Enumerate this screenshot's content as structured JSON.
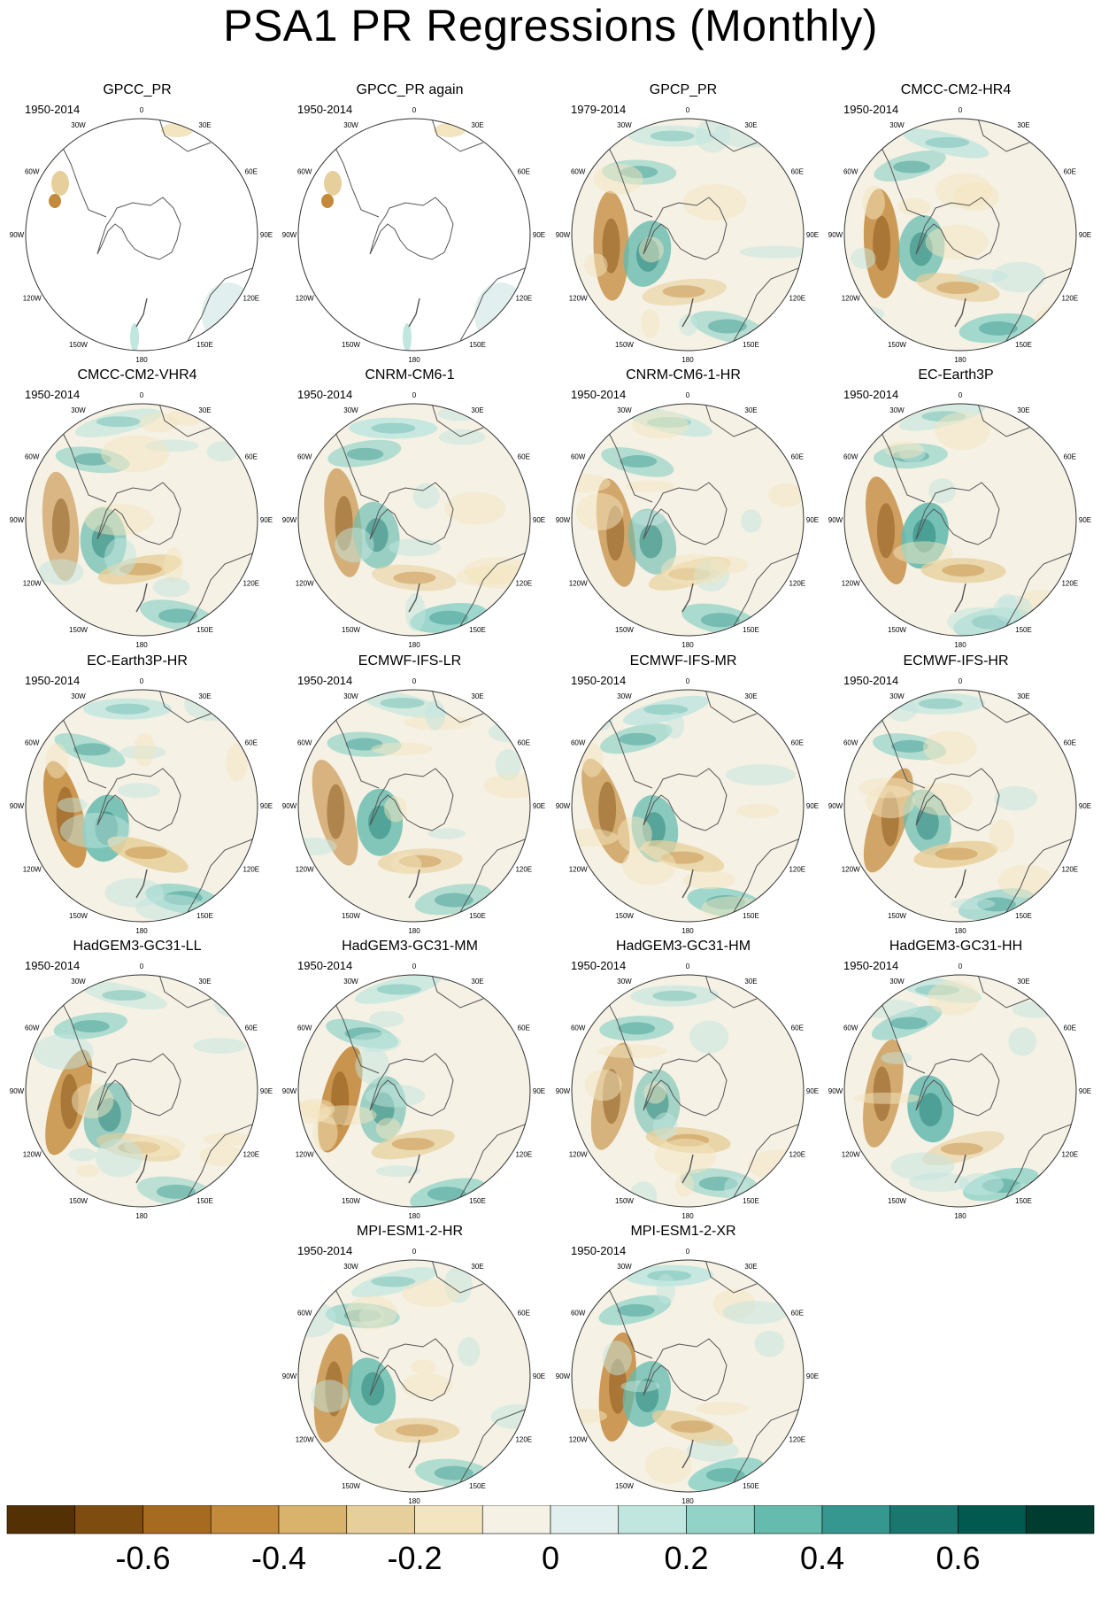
{
  "title": "PSA1 PR Regressions (Monthly)",
  "longitude_labels": [
    "0",
    "30E",
    "60E",
    "90E",
    "120E",
    "150E",
    "180",
    "150W",
    "120W",
    "90W",
    "60W",
    "30W"
  ],
  "panels": [
    {
      "name": "GPCC_PR",
      "years": "1950-2014",
      "coverage": "land-only"
    },
    {
      "name": "GPCC_PR again",
      "years": "1950-2014",
      "coverage": "land-only"
    },
    {
      "name": "GPCP_PR",
      "years": "1979-2014",
      "coverage": "full"
    },
    {
      "name": "CMCC-CM2-HR4",
      "years": "1950-2014",
      "coverage": "full"
    },
    {
      "name": "CMCC-CM2-VHR4",
      "years": "1950-2014",
      "coverage": "full"
    },
    {
      "name": "CNRM-CM6-1",
      "years": "1950-2014",
      "coverage": "full"
    },
    {
      "name": "CNRM-CM6-1-HR",
      "years": "1950-2014",
      "coverage": "full"
    },
    {
      "name": "EC-Earth3P",
      "years": "1950-2014",
      "coverage": "full"
    },
    {
      "name": "EC-Earth3P-HR",
      "years": "1950-2014",
      "coverage": "full"
    },
    {
      "name": "ECMWF-IFS-LR",
      "years": "1950-2014",
      "coverage": "full"
    },
    {
      "name": "ECMWF-IFS-MR",
      "years": "1950-2014",
      "coverage": "full"
    },
    {
      "name": "ECMWF-IFS-HR",
      "years": "1950-2014",
      "coverage": "full"
    },
    {
      "name": "HadGEM3-GC31-LL",
      "years": "1950-2014",
      "coverage": "full"
    },
    {
      "name": "HadGEM3-GC31-MM",
      "years": "1950-2014",
      "coverage": "full"
    },
    {
      "name": "HadGEM3-GC31-HM",
      "years": "1950-2014",
      "coverage": "full"
    },
    {
      "name": "HadGEM3-GC31-HH",
      "years": "1950-2014",
      "coverage": "full"
    },
    {
      "name": "MPI-ESM1-2-HR",
      "years": "1950-2014",
      "coverage": "full"
    },
    {
      "name": "MPI-ESM1-2-XR",
      "years": "1950-2014",
      "coverage": "full"
    }
  ],
  "colorbar": {
    "colors": [
      "#543005",
      "#7f4c0f",
      "#a66a21",
      "#c48a3c",
      "#d9b26c",
      "#e7cf9b",
      "#f3e5c0",
      "#f5f1e4",
      "#e1f0ee",
      "#c1e6df",
      "#92d3c8",
      "#66bbaf",
      "#35978f",
      "#19776f",
      "#01594f",
      "#003c30"
    ],
    "ticks": [
      -0.6,
      -0.4,
      -0.2,
      0,
      0.2,
      0.4,
      0.6
    ],
    "tick_labels": [
      "-0.6",
      "-0.4",
      "-0.2",
      "0",
      "0.2",
      "0.4",
      "0.6"
    ],
    "range": [
      -0.8,
      0.8
    ]
  }
}
